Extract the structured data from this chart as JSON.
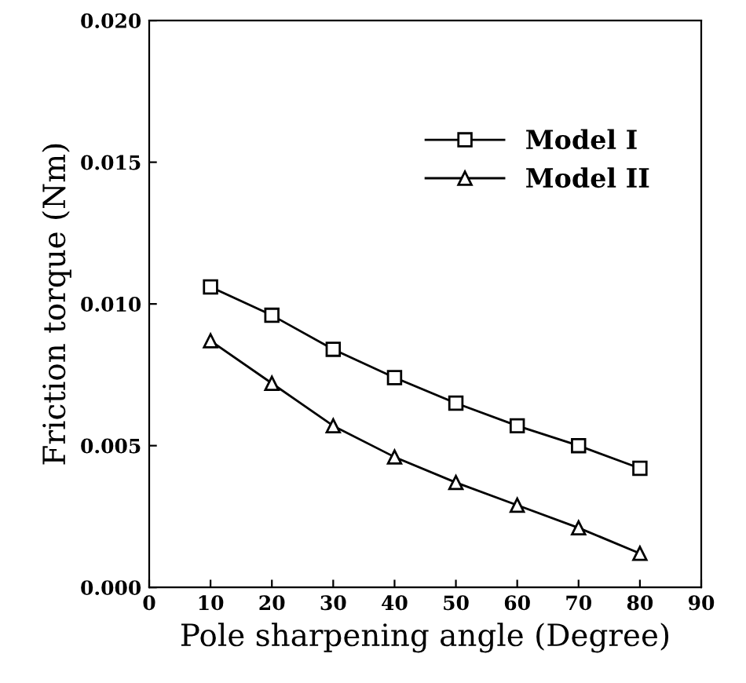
{
  "chart_data": {
    "type": "line",
    "xlabel": "Pole sharpening angle (Degree)",
    "ylabel": "Friction torque (Nm)",
    "x": [
      10,
      20,
      30,
      40,
      50,
      60,
      70,
      80
    ],
    "series": [
      {
        "name": "Model I",
        "color": "#000000",
        "marker": "square",
        "values": [
          0.0106,
          0.0096,
          0.0084,
          0.0074,
          0.0065,
          0.0057,
          0.005,
          0.0042
        ]
      },
      {
        "name": "Model II",
        "color": "#000000",
        "marker": "triangle",
        "values": [
          0.0087,
          0.0072,
          0.0057,
          0.0046,
          0.0037,
          0.0029,
          0.0021,
          0.0012
        ]
      }
    ],
    "xlim": [
      0,
      90
    ],
    "xticks": [
      0,
      10,
      20,
      30,
      40,
      50,
      60,
      70,
      80,
      90
    ],
    "ylim": [
      0,
      0.02
    ],
    "yticks": [
      {
        "value": 0,
        "label": "0.000"
      },
      {
        "value": 0.005,
        "label": "0.005"
      },
      {
        "value": 0.01,
        "label": "0.010"
      },
      {
        "value": 0.015,
        "label": "0.015"
      },
      {
        "value": 0.02,
        "label": "0.020"
      }
    ],
    "legend": "top right",
    "grid": false,
    "line_style": "solid"
  }
}
